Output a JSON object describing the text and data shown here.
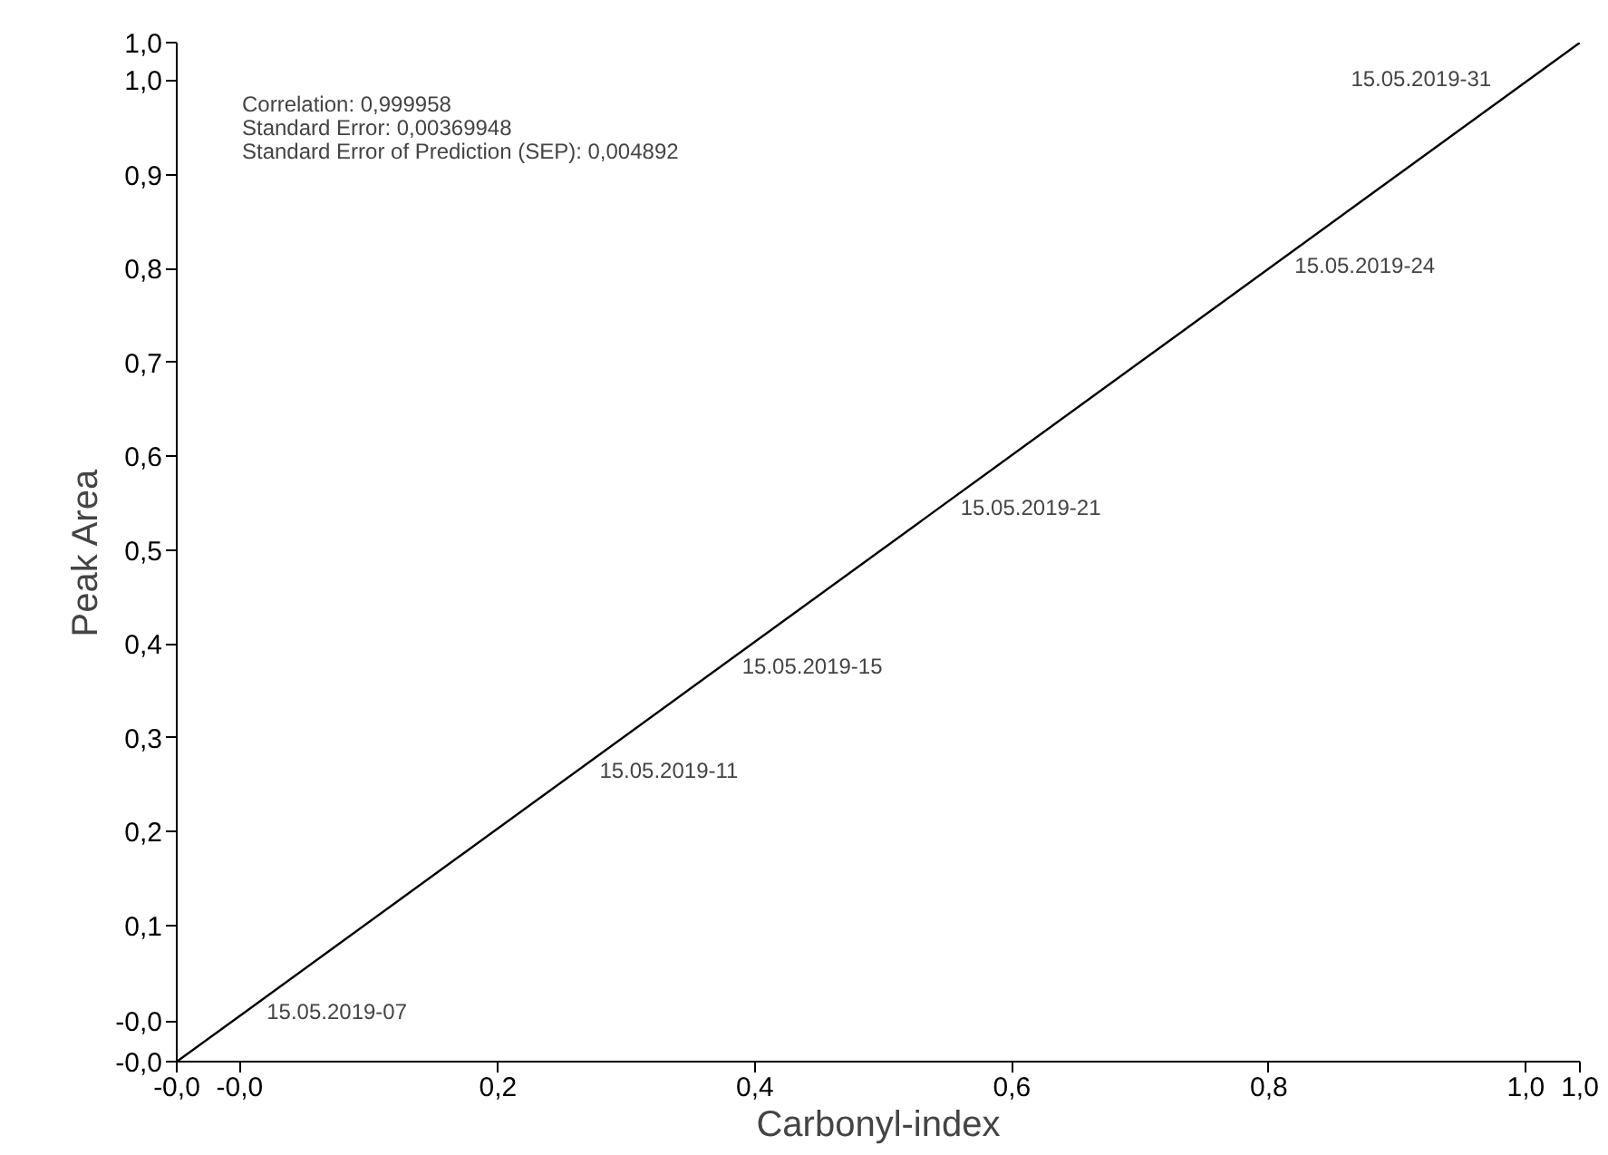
{
  "chart_data": {
    "type": "line",
    "xlabel": "Carbonyl-index",
    "ylabel": "Peak Area",
    "xlim": [
      -0.05,
      1.042
    ],
    "ylim": [
      -0.045,
      1.041
    ],
    "xticks": [
      {
        "value": -0.05,
        "label": "-0,0"
      },
      {
        "value": -0.001,
        "label": "-0,0"
      },
      {
        "value": 0.2,
        "label": "0,2"
      },
      {
        "value": 0.4,
        "label": "0,4"
      },
      {
        "value": 0.6,
        "label": "0,6"
      },
      {
        "value": 0.8,
        "label": "0,8"
      },
      {
        "value": 1.0,
        "label": "1,0"
      },
      {
        "value": 1.042,
        "label": "1,0"
      }
    ],
    "yticks": [
      {
        "value": -0.045,
        "label": "-0,0"
      },
      {
        "value": -0.002,
        "label": "-0,0"
      },
      {
        "value": 0.1,
        "label": "0,1"
      },
      {
        "value": 0.2,
        "label": "0,2"
      },
      {
        "value": 0.3,
        "label": "0,3"
      },
      {
        "value": 0.4,
        "label": "0,4"
      },
      {
        "value": 0.5,
        "label": "0,5"
      },
      {
        "value": 0.6,
        "label": "0,6"
      },
      {
        "value": 0.7,
        "label": "0,7"
      },
      {
        "value": 0.8,
        "label": "0,8"
      },
      {
        "value": 0.9,
        "label": "0,9"
      },
      {
        "value": 1.001,
        "label": "1,0"
      },
      {
        "value": 1.041,
        "label": "1,0"
      }
    ],
    "grid": false,
    "marker": "none",
    "line_style": "solid",
    "series": [
      {
        "color": "#000000",
        "x": [
          -0.05,
          1.042
        ],
        "values": [
          -0.045,
          1.041
        ]
      }
    ],
    "annotations": [
      "Correlation: 0,999958",
      "Standard Error: 0,00369948",
      "Standard Error of Prediction (SEP): 0,004892",
      {
        "text": "15.05.2019-07",
        "x": 0.02,
        "y": 0.025
      },
      {
        "text": "15.05.2019-11",
        "x": 0.279,
        "y": 0.282
      },
      {
        "text": "15.05.2019-15",
        "x": 0.39,
        "y": 0.393
      },
      {
        "text": "15.05.2019-21",
        "x": 0.56,
        "y": 0.562
      },
      {
        "text": "15.05.2019-24",
        "x": 0.82,
        "y": 0.82
      },
      {
        "text": "15.05.2019-31",
        "x": 0.973,
        "y": 0.972
      }
    ]
  }
}
